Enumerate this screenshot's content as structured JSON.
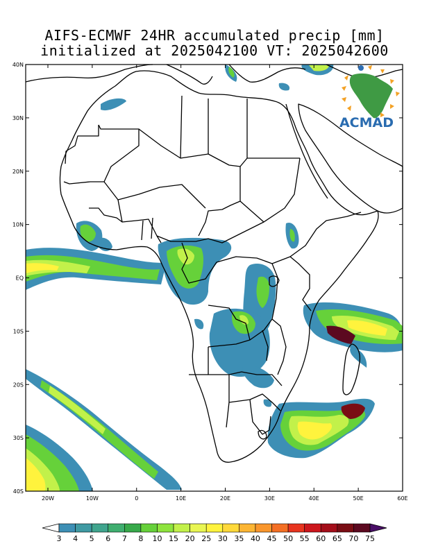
{
  "header": {
    "title_line1": "AIFS-ECMWF 24HR accumulated precip [mm]",
    "title_line2": "initialized at 2025042100 VT: 2025042600"
  },
  "logo": {
    "text": "ACMAD",
    "icon": "africa-map-logo-icon"
  },
  "axes": {
    "y_ticks": [
      "40N",
      "30N",
      "20N",
      "10N",
      "EQ",
      "10S",
      "20S",
      "30S",
      "40S"
    ],
    "x_ticks": [
      "20W",
      "10W",
      "0",
      "10E",
      "20E",
      "30E",
      "40E",
      "50E",
      "60E"
    ]
  },
  "colorbar": {
    "labels": [
      "3",
      "4",
      "5",
      "6",
      "7",
      "8",
      "10",
      "15",
      "20",
      "25",
      "30",
      "35",
      "40",
      "45",
      "50",
      "55",
      "60",
      "65",
      "70",
      "75"
    ],
    "colors": [
      "#3d8fb5",
      "#3f9aa3",
      "#40a58e",
      "#3fae6f",
      "#37a94a",
      "#66d13a",
      "#8ee43d",
      "#c2f14a",
      "#e9f652",
      "#fff33d",
      "#ffd93a",
      "#fcb533",
      "#f9962c",
      "#f46f24",
      "#e8341f",
      "#cc161c",
      "#a40e1a",
      "#7a0d14",
      "#5c0920",
      "#4a0e67"
    ]
  }
}
